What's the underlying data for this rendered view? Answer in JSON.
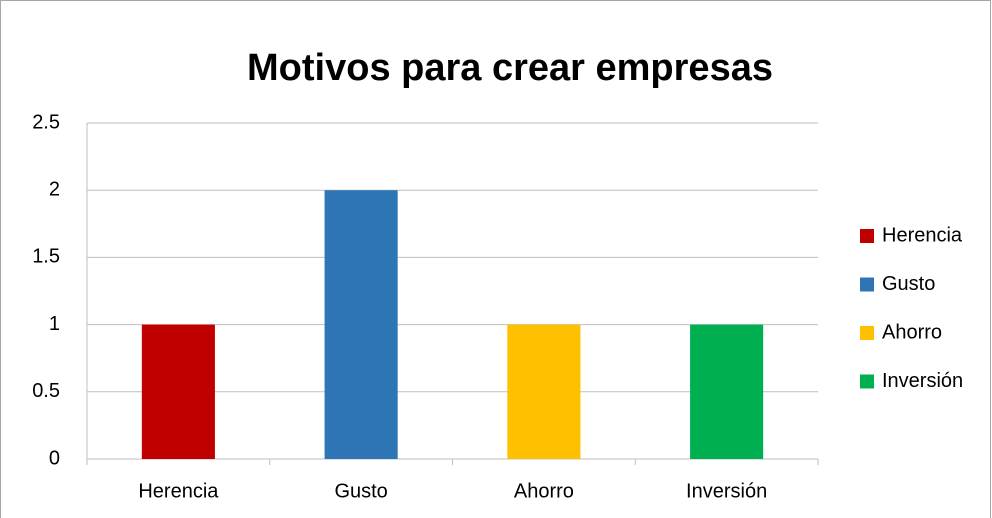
{
  "chart_data": {
    "type": "bar",
    "title": "Motivos para crear empresas",
    "categories": [
      "Herencia",
      "Gusto",
      "Ahorro",
      "Inversión"
    ],
    "values": [
      1,
      2,
      1,
      1
    ],
    "colors": [
      "#c00000",
      "#2e75b6",
      "#ffc000",
      "#00b050"
    ],
    "ylim": [
      0,
      2.5
    ],
    "yticks": [
      0,
      0.5,
      1,
      1.5,
      2,
      2.5
    ],
    "grid": true,
    "legend": "right"
  }
}
